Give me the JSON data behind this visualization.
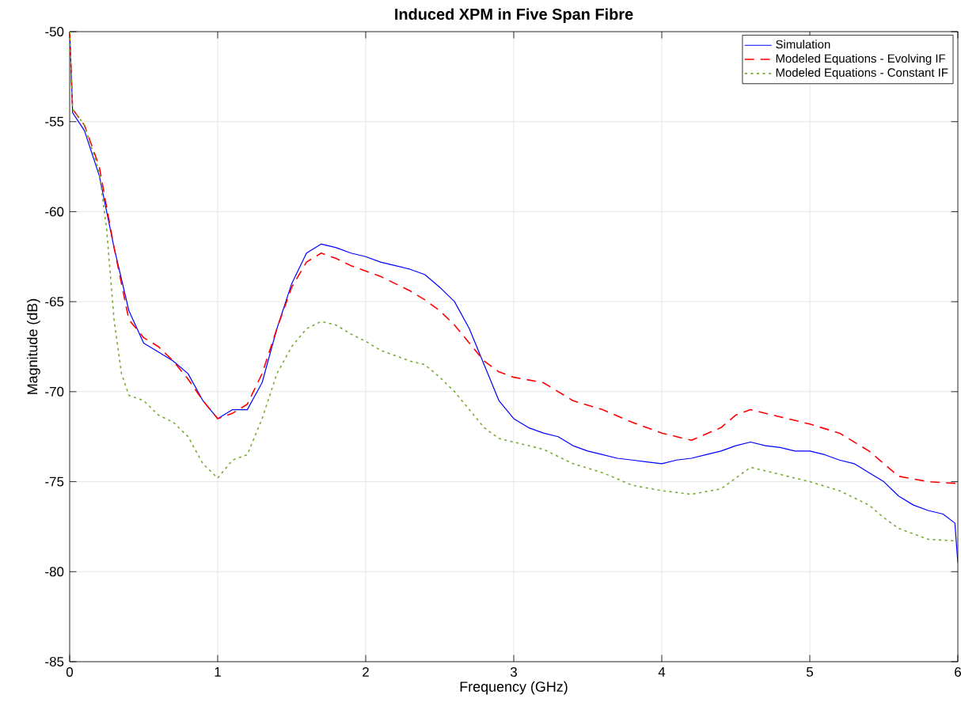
{
  "chart_data": {
    "type": "line",
    "title": "Induced XPM in Five Span Fibre",
    "xlabel": "Frequency (GHz)",
    "ylabel": "Magnitude (dB)",
    "xlim": [
      0,
      6
    ],
    "ylim": [
      -85,
      -50
    ],
    "xticks": [
      0,
      1,
      2,
      3,
      4,
      5,
      6
    ],
    "yticks": [
      -85,
      -80,
      -75,
      -70,
      -65,
      -60,
      -55,
      -50
    ],
    "grid": true,
    "legend": "top right",
    "series": [
      {
        "name": "Simulation",
        "color": "#0000ff",
        "line_style": "solid",
        "x": [
          0,
          0.02,
          0.1,
          0.2,
          0.3,
          0.4,
          0.5,
          0.6,
          0.7,
          0.8,
          0.9,
          1.0,
          1.1,
          1.2,
          1.3,
          1.4,
          1.5,
          1.6,
          1.7,
          1.8,
          1.9,
          2.0,
          2.1,
          2.2,
          2.3,
          2.4,
          2.5,
          2.6,
          2.7,
          2.8,
          2.9,
          3.0,
          3.1,
          3.2,
          3.3,
          3.4,
          3.5,
          3.6,
          3.7,
          3.8,
          3.9,
          4.0,
          4.1,
          4.2,
          4.3,
          4.4,
          4.5,
          4.6,
          4.7,
          4.8,
          4.9,
          5.0,
          5.1,
          5.2,
          5.3,
          5.4,
          5.5,
          5.6,
          5.7,
          5.8,
          5.9,
          5.98,
          6.0
        ],
        "values": [
          -50,
          -54.5,
          -55.5,
          -58,
          -62,
          -65.5,
          -67.3,
          -67.8,
          -68.3,
          -69,
          -70.5,
          -71.5,
          -71,
          -71,
          -69.5,
          -66.5,
          -64,
          -62.3,
          -61.8,
          -62,
          -62.3,
          -62.5,
          -62.8,
          -63,
          -63.2,
          -63.5,
          -64.2,
          -65,
          -66.5,
          -68.5,
          -70.5,
          -71.5,
          -72,
          -72.3,
          -72.5,
          -73,
          -73.3,
          -73.5,
          -73.7,
          -73.8,
          -73.9,
          -74,
          -73.8,
          -73.7,
          -73.5,
          -73.3,
          -73,
          -72.8,
          -73,
          -73.1,
          -73.3,
          -73.3,
          -73.5,
          -73.8,
          -74,
          -74.5,
          -75,
          -75.8,
          -76.3,
          -76.6,
          -76.8,
          -77.3,
          -79.5
        ]
      },
      {
        "name": "Modeled Equations - Evolving IF",
        "color": "#ff0000",
        "line_style": "dashed",
        "x": [
          0,
          0.02,
          0.1,
          0.2,
          0.3,
          0.4,
          0.5,
          0.6,
          0.7,
          0.8,
          0.9,
          1.0,
          1.1,
          1.2,
          1.3,
          1.4,
          1.5,
          1.6,
          1.7,
          1.8,
          1.9,
          2.0,
          2.1,
          2.2,
          2.3,
          2.4,
          2.5,
          2.6,
          2.7,
          2.8,
          2.9,
          3.0,
          3.2,
          3.4,
          3.6,
          3.8,
          4.0,
          4.2,
          4.4,
          4.5,
          4.6,
          4.8,
          5.0,
          5.2,
          5.4,
          5.5,
          5.6,
          5.8,
          6.0
        ],
        "values": [
          -50,
          -54.3,
          -55.2,
          -57.5,
          -62,
          -66,
          -67,
          -67.5,
          -68.3,
          -69.3,
          -70.5,
          -71.5,
          -71.2,
          -70.7,
          -69,
          -66.5,
          -64.2,
          -62.8,
          -62.3,
          -62.6,
          -63,
          -63.3,
          -63.6,
          -64,
          -64.4,
          -64.9,
          -65.5,
          -66.3,
          -67.3,
          -68.3,
          -68.9,
          -69.2,
          -69.5,
          -70.5,
          -71,
          -71.7,
          -72.3,
          -72.7,
          -72,
          -71.3,
          -71,
          -71.4,
          -71.8,
          -72.3,
          -73.3,
          -74,
          -74.7,
          -75,
          -75.1
        ]
      },
      {
        "name": "Modeled Equations - Constant IF",
        "color": "#77ac30",
        "line_style": "dotted",
        "x": [
          0,
          0.02,
          0.1,
          0.2,
          0.25,
          0.3,
          0.35,
          0.4,
          0.5,
          0.6,
          0.7,
          0.8,
          0.9,
          1.0,
          1.1,
          1.2,
          1.3,
          1.4,
          1.5,
          1.6,
          1.7,
          1.8,
          1.9,
          2.0,
          2.1,
          2.2,
          2.3,
          2.4,
          2.5,
          2.6,
          2.7,
          2.8,
          2.9,
          3.0,
          3.2,
          3.4,
          3.6,
          3.8,
          4.0,
          4.2,
          4.4,
          4.5,
          4.6,
          4.8,
          5.0,
          5.2,
          5.4,
          5.5,
          5.6,
          5.8,
          6.0
        ],
        "values": [
          -50,
          -54.3,
          -55.2,
          -57.8,
          -61,
          -66,
          -69,
          -70.2,
          -70.5,
          -71.3,
          -71.7,
          -72.5,
          -74,
          -74.8,
          -73.8,
          -73.5,
          -71.5,
          -69,
          -67.5,
          -66.5,
          -66.1,
          -66.3,
          -66.8,
          -67.2,
          -67.7,
          -68,
          -68.3,
          -68.5,
          -69.2,
          -70,
          -71,
          -72,
          -72.6,
          -72.8,
          -73.2,
          -74,
          -74.5,
          -75.2,
          -75.5,
          -75.7,
          -75.4,
          -74.8,
          -74.2,
          -74.6,
          -75,
          -75.5,
          -76.3,
          -77,
          -77.6,
          -78.2,
          -78.3
        ]
      }
    ]
  }
}
